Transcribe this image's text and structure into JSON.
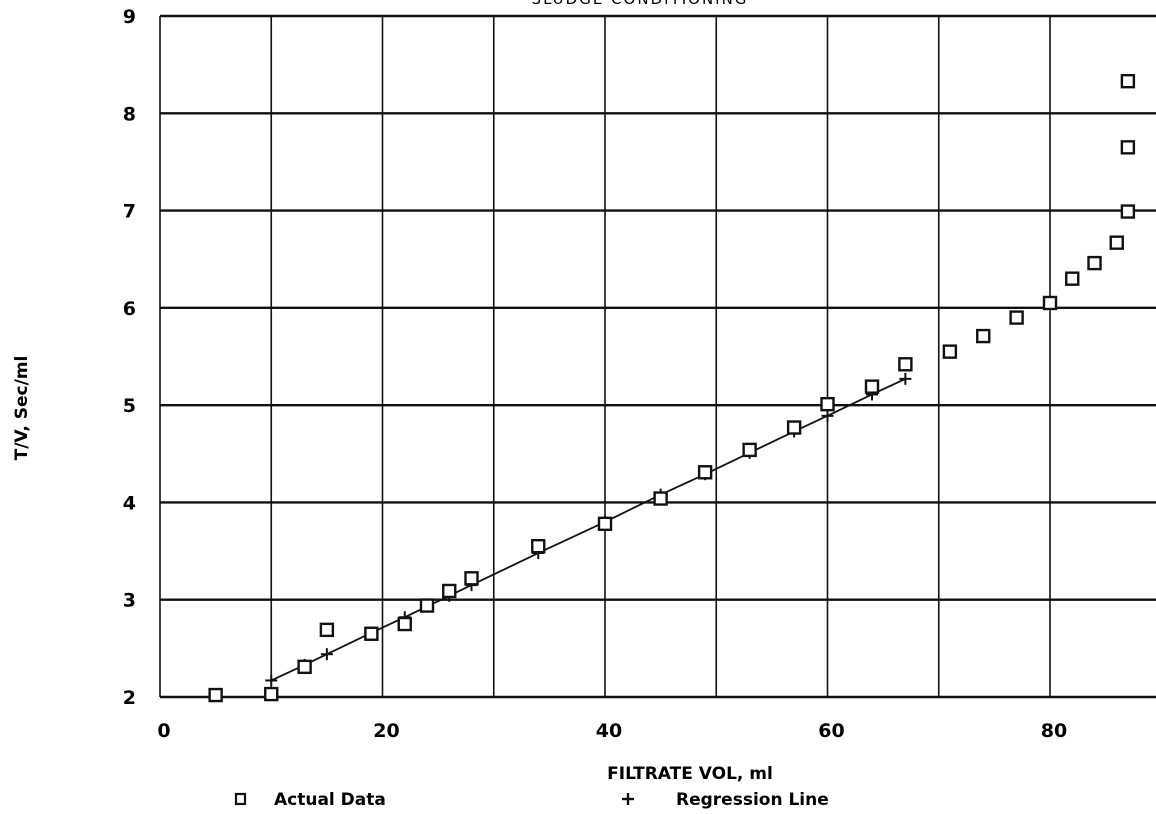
{
  "chart_data": {
    "type": "scatter",
    "title": "SLUDGE CONDITIONING",
    "xlabel": "FILTRATE VOL, ml",
    "ylabel": "T/V, Sec/ml",
    "xlim": [
      0,
      88
    ],
    "ylim": [
      2,
      9
    ],
    "x_ticks": [
      0,
      20,
      40,
      60,
      80
    ],
    "x_tick_labels": [
      "0",
      "20",
      "40",
      "60",
      "80"
    ],
    "x_gridlines": [
      0,
      10,
      20,
      30,
      40,
      50,
      60,
      70,
      80
    ],
    "y_ticks": [
      2,
      3,
      4,
      5,
      6,
      7,
      8,
      9
    ],
    "y_tick_labels": [
      "2",
      "3",
      "4",
      "5",
      "6",
      "7",
      "8",
      "9"
    ],
    "grid": true,
    "legend_position": "bottom",
    "series": [
      {
        "name": "Actual Data",
        "marker": "square",
        "x": [
          5,
          10,
          13,
          15,
          19,
          22,
          24,
          26,
          28,
          34,
          40,
          45,
          49,
          53,
          57,
          60,
          64,
          67,
          71,
          74,
          77,
          80,
          82,
          84,
          86,
          87,
          87,
          87
        ],
        "y": [
          2.02,
          2.03,
          2.31,
          2.69,
          2.65,
          2.75,
          2.94,
          3.09,
          3.22,
          3.55,
          3.78,
          4.04,
          4.31,
          4.54,
          4.77,
          5.01,
          5.19,
          5.42,
          5.55,
          5.71,
          5.9,
          6.05,
          6.3,
          6.46,
          6.67,
          6.99,
          7.65,
          8.33
        ]
      },
      {
        "name": "Regression Line",
        "marker": "plus",
        "x": [
          10,
          13,
          15,
          19,
          22,
          24,
          26,
          28,
          34,
          40,
          45,
          49,
          53,
          57,
          60,
          64,
          67
        ],
        "y": [
          2.17,
          2.33,
          2.44,
          2.66,
          2.82,
          2.93,
          3.04,
          3.15,
          3.48,
          3.8,
          4.08,
          4.29,
          4.51,
          4.73,
          4.89,
          5.11,
          5.27
        ]
      }
    ]
  }
}
